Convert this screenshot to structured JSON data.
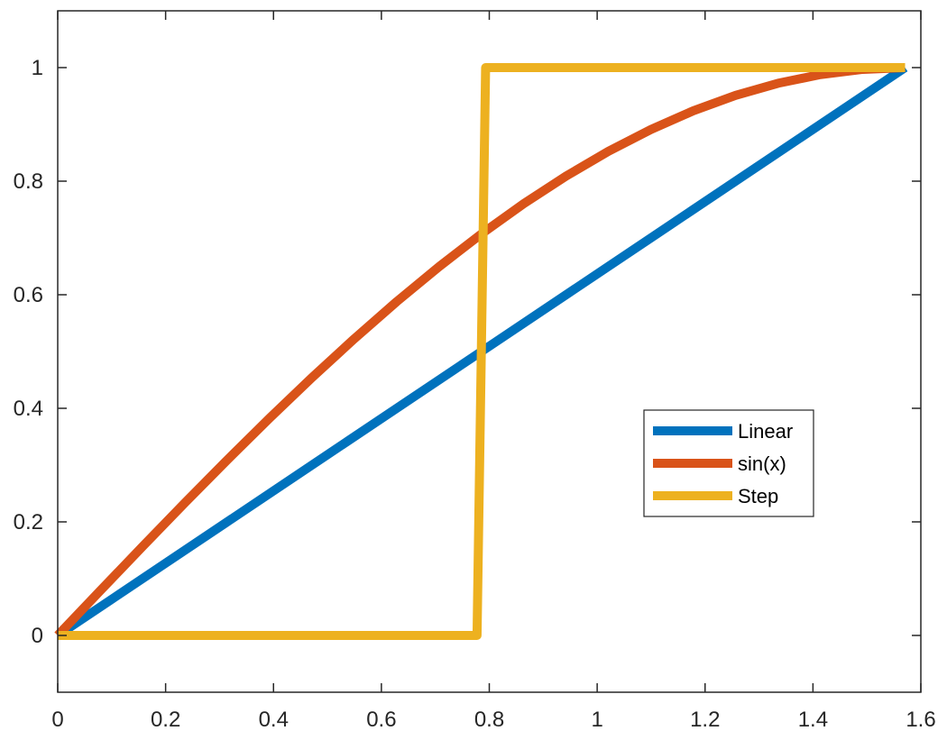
{
  "chart_data": {
    "type": "line",
    "title": "",
    "xlabel": "",
    "ylabel": "",
    "xlim": [
      0,
      1.6
    ],
    "ylim": [
      -0.1,
      1.1
    ],
    "xticks": [
      0,
      0.2,
      0.4,
      0.6,
      0.8,
      1,
      1.2,
      1.4,
      1.6
    ],
    "xtick_labels": [
      "0",
      "0.2",
      "0.4",
      "0.6",
      "0.8",
      "1",
      "1.2",
      "1.4",
      "1.6"
    ],
    "yticks": [
      0,
      0.2,
      0.4,
      0.6,
      0.8,
      1
    ],
    "ytick_labels": [
      "0",
      "0.2",
      "0.4",
      "0.6",
      "0.8",
      "1"
    ],
    "grid": false,
    "legend_position": "right",
    "series": [
      {
        "name": "Linear",
        "color": "#0072BD",
        "x": [
          0,
          1.5708
        ],
        "y": [
          0,
          1
        ]
      },
      {
        "name": "sin(x)",
        "color": "#D95319",
        "x": [
          0,
          0.0785,
          0.1571,
          0.2356,
          0.3142,
          0.3927,
          0.4712,
          0.5498,
          0.6283,
          0.7069,
          0.7854,
          0.8639,
          0.9425,
          1.021,
          1.0996,
          1.1781,
          1.2566,
          1.3352,
          1.4137,
          1.4923,
          1.5708
        ],
        "y": [
          0,
          0.0785,
          0.1564,
          0.2334,
          0.309,
          0.3827,
          0.454,
          0.5225,
          0.5878,
          0.6494,
          0.7071,
          0.7604,
          0.809,
          0.8526,
          0.891,
          0.9239,
          0.9511,
          0.9724,
          0.9877,
          0.9969,
          1
        ]
      },
      {
        "name": "Step",
        "color": "#EDB120",
        "x": [
          0,
          0.7773,
          0.7932,
          1.5708
        ],
        "y": [
          0,
          0,
          1,
          1
        ]
      }
    ]
  }
}
